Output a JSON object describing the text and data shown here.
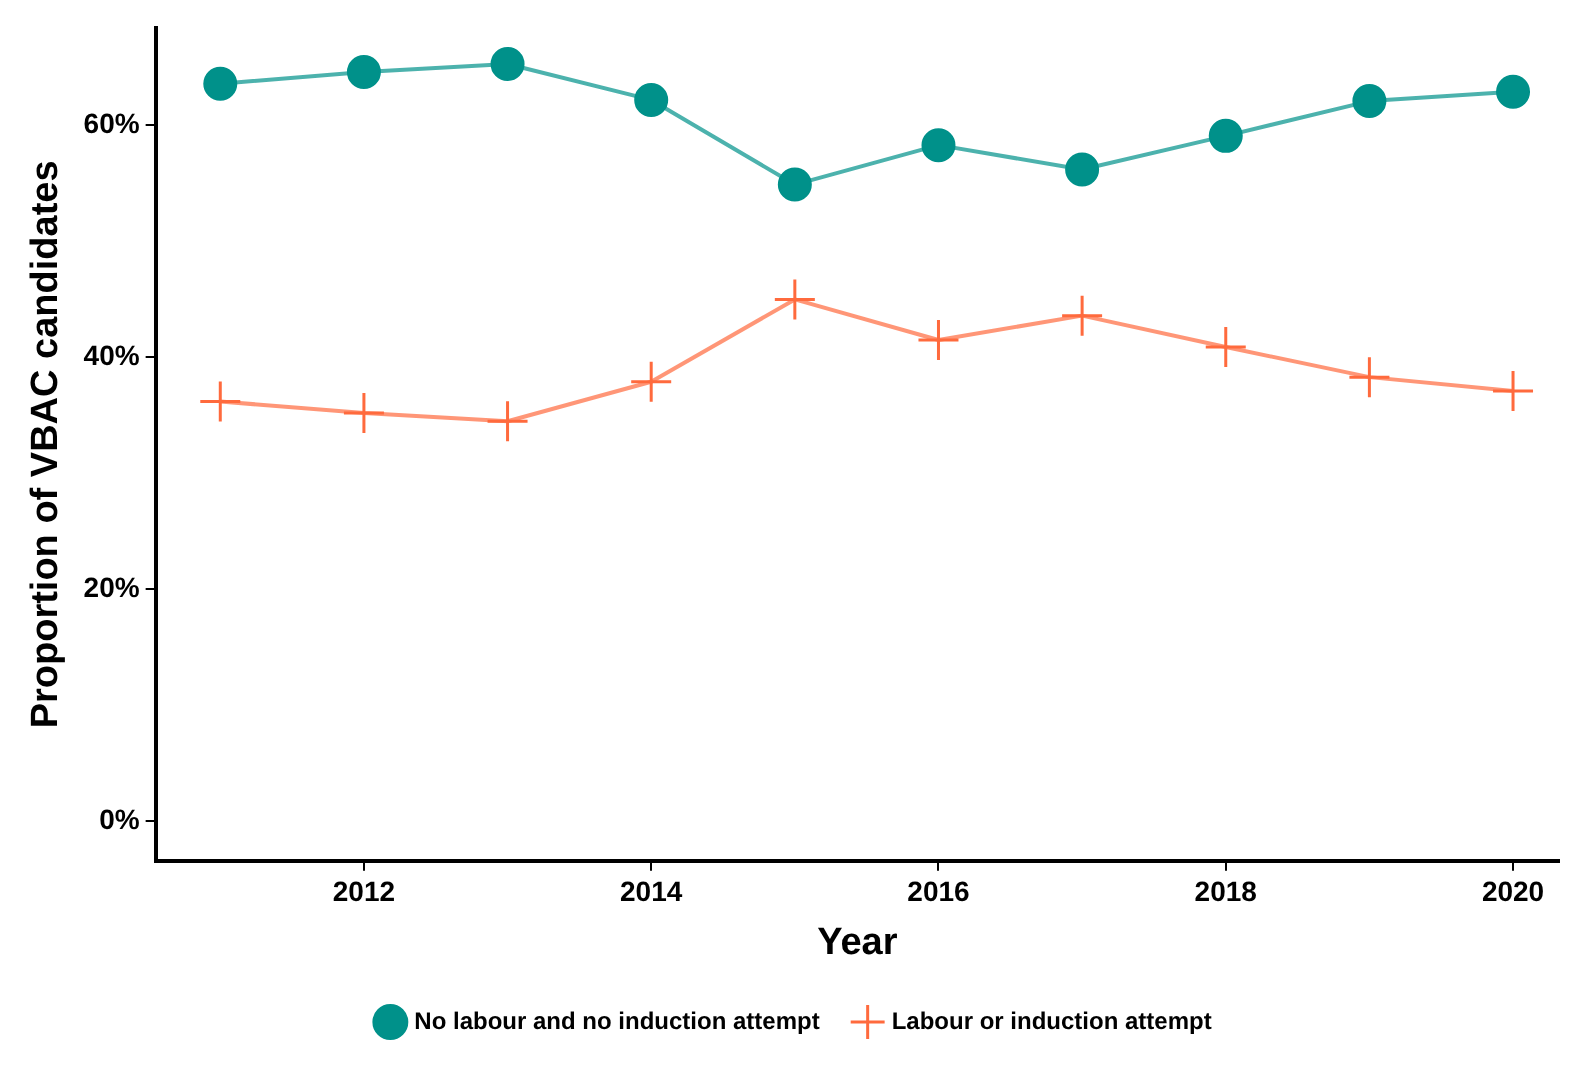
{
  "chart_data": {
    "type": "line",
    "xlabel": "Year",
    "ylabel": "Proportion of VBAC candidates",
    "x": [
      2011,
      2012,
      2013,
      2014,
      2015,
      2016,
      2017,
      2018,
      2019,
      2020
    ],
    "series": [
      {
        "name": "No labour and no induction attempt",
        "color": "#00918a",
        "marker": "circle",
        "values": [
          63.6,
          64.6,
          65.3,
          62.2,
          54.9,
          58.3,
          56.2,
          59.1,
          62.1,
          62.9
        ]
      },
      {
        "name": "Labour or induction attempt",
        "color": "#ff6a3d",
        "marker": "cross",
        "values": [
          36.2,
          35.2,
          34.5,
          37.9,
          45.0,
          41.5,
          43.6,
          40.9,
          38.3,
          37.1
        ]
      }
    ],
    "xlim": [
      2010.55,
      2020.32
    ],
    "xticks": [
      2012,
      2014,
      2016,
      2018,
      2020
    ],
    "ylim": [
      -3.4,
      68.4
    ],
    "yticks": [
      {
        "value": 0,
        "label": "0%"
      },
      {
        "value": 20,
        "label": "20%"
      },
      {
        "value": 40,
        "label": "40%"
      },
      {
        "value": 60,
        "label": "60%"
      }
    ],
    "grid": false,
    "legend": "bottom",
    "line_style": "solid"
  }
}
